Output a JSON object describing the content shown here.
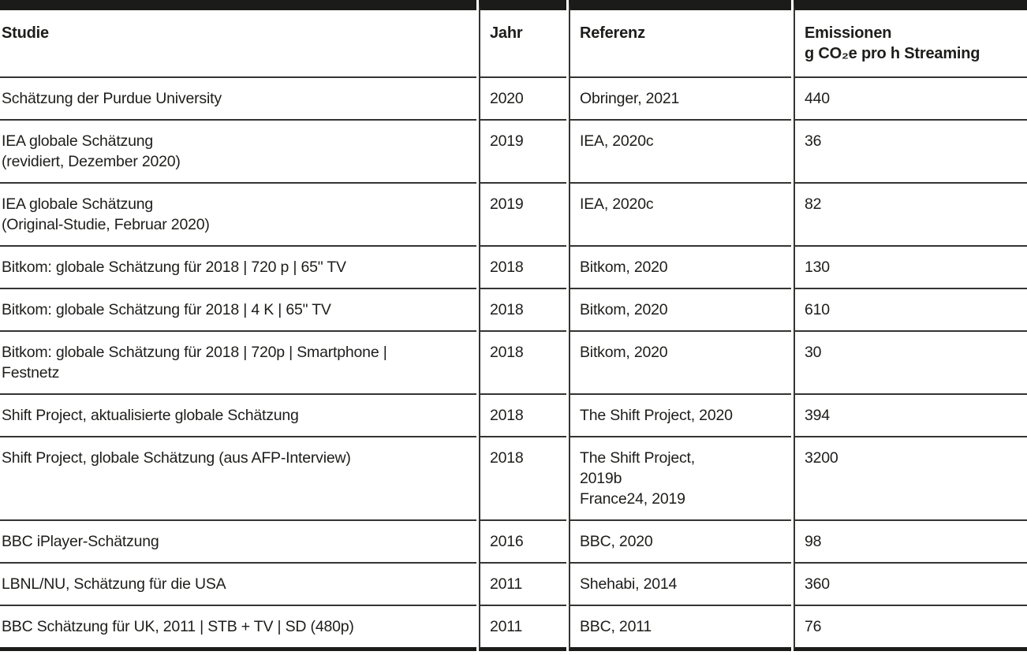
{
  "table": {
    "columns": [
      {
        "key": "studie",
        "label": "Studie"
      },
      {
        "key": "jahr",
        "label": "Jahr"
      },
      {
        "key": "referenz",
        "label": "Referenz"
      },
      {
        "key": "emissionen",
        "label": "Emissionen\ng CO₂e pro h Streaming"
      }
    ],
    "rows": [
      {
        "studie": "Schätzung der Purdue University",
        "jahr": "2020",
        "referenz": "Obringer, 2021",
        "emissionen": "440"
      },
      {
        "studie": "IEA globale Schätzung\n(revidiert, Dezember 2020)",
        "jahr": "2019",
        "referenz": "IEA, 2020c",
        "emissionen": "36"
      },
      {
        "studie": "IEA globale Schätzung\n(Original-Studie, Februar 2020)",
        "jahr": "2019",
        "referenz": "IEA, 2020c",
        "emissionen": "82"
      },
      {
        "studie": "Bitkom: globale Schätzung für 2018 | 720 p | 65\" TV",
        "jahr": "2018",
        "referenz": "Bitkom, 2020",
        "emissionen": "130"
      },
      {
        "studie": "Bitkom: globale Schätzung für 2018 | 4 K | 65\" TV",
        "jahr": "2018",
        "referenz": "Bitkom, 2020",
        "emissionen": "610"
      },
      {
        "studie": "Bitkom: globale Schätzung für 2018 | 720p | Smartphone |\nFestnetz",
        "jahr": "2018",
        "referenz": "Bitkom, 2020",
        "emissionen": "30"
      },
      {
        "studie": "Shift Project, aktualisierte globale Schätzung",
        "jahr": "2018",
        "referenz": "The Shift Project, 2020",
        "emissionen": "394"
      },
      {
        "studie": "Shift Project, globale Schätzung (aus AFP-Interview)",
        "jahr": "2018",
        "referenz": "The Shift Project,\n2019b\nFrance24, 2019",
        "emissionen": "3200"
      },
      {
        "studie": "BBC iPlayer-Schätzung",
        "jahr": "2016",
        "referenz": "BBC, 2020",
        "emissionen": "98"
      },
      {
        "studie": "LBNL/NU, Schätzung für die USA",
        "jahr": "2011",
        "referenz": "Shehabi, 2014",
        "emissionen": "360"
      },
      {
        "studie": "BBC Schätzung für UK, 2011 | STB + TV | SD (480p)",
        "jahr": "2011",
        "referenz": "BBC, 2011",
        "emissionen": "76"
      }
    ]
  },
  "colors": {
    "top_bar": "#1b1b19",
    "grid_line": "#343432",
    "text": "#1d1d1b",
    "background": "#ffffff"
  }
}
